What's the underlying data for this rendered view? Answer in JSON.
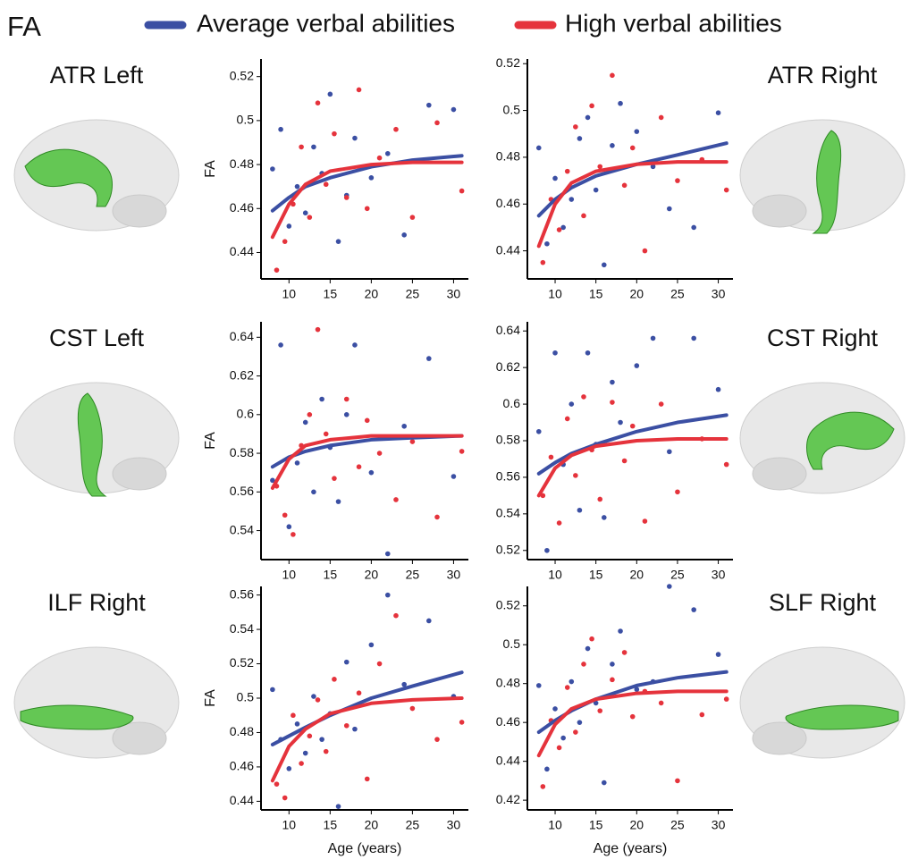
{
  "title": "FA",
  "chart_data": [
    {
      "type": "scatter",
      "title": "ATR Left",
      "ylabel": "FA",
      "xlim": [
        6.6,
        31.8
      ],
      "xticks": [
        10,
        15,
        20,
        25,
        30
      ],
      "ylim": [
        0.428,
        0.528
      ],
      "yticks": [
        0.44,
        0.46,
        0.48,
        0.5,
        0.52
      ],
      "series": [
        {
          "name": "Average verbal abilities",
          "color": "#3b4fa3",
          "x": [
            8,
            9,
            10,
            11,
            12,
            13,
            14,
            15,
            16,
            17,
            18,
            20,
            22,
            24,
            27,
            30
          ],
          "values": [
            0.478,
            0.496,
            0.452,
            0.47,
            0.458,
            0.488,
            0.476,
            0.512,
            0.445,
            0.466,
            0.492,
            0.474,
            0.485,
            0.448,
            0.507,
            0.505
          ],
          "fit_x": [
            8,
            10,
            12,
            15,
            20,
            25,
            31
          ],
          "fit_values": [
            0.459,
            0.465,
            0.47,
            0.474,
            0.479,
            0.482,
            0.484
          ]
        },
        {
          "name": "High verbal abilities",
          "color": "#e5333c",
          "x": [
            8.5,
            9.5,
            10.5,
            11.5,
            12.5,
            13.5,
            14.5,
            15.5,
            17,
            18.5,
            19.5,
            21,
            23,
            25,
            28,
            31
          ],
          "values": [
            0.432,
            0.445,
            0.462,
            0.488,
            0.456,
            0.508,
            0.471,
            0.494,
            0.465,
            0.514,
            0.46,
            0.483,
            0.496,
            0.456,
            0.499,
            0.468
          ],
          "fit_x": [
            8,
            10,
            12,
            15,
            20,
            25,
            31
          ],
          "fit_values": [
            0.447,
            0.462,
            0.471,
            0.477,
            0.48,
            0.481,
            0.481
          ]
        }
      ]
    },
    {
      "type": "scatter",
      "title": "ATR Right",
      "xlim": [
        6.6,
        31.8
      ],
      "xticks": [
        10,
        15,
        20,
        25,
        30
      ],
      "ylim": [
        0.428,
        0.522
      ],
      "yticks": [
        0.44,
        0.46,
        0.48,
        0.5,
        0.52
      ],
      "series": [
        {
          "name": "Average verbal abilities",
          "color": "#3b4fa3",
          "x": [
            8,
            9,
            10,
            11,
            12,
            13,
            14,
            15,
            16,
            17,
            18,
            20,
            22,
            24,
            27,
            30
          ],
          "values": [
            0.484,
            0.443,
            0.471,
            0.45,
            0.462,
            0.488,
            0.497,
            0.466,
            0.434,
            0.485,
            0.503,
            0.491,
            0.476,
            0.458,
            0.45,
            0.499
          ],
          "fit_x": [
            8,
            10,
            12,
            15,
            20,
            25,
            31
          ],
          "fit_values": [
            0.455,
            0.462,
            0.467,
            0.472,
            0.477,
            0.481,
            0.486
          ]
        },
        {
          "name": "High verbal abilities",
          "color": "#e5333c",
          "x": [
            8.5,
            9.5,
            10.5,
            11.5,
            12.5,
            13.5,
            14.5,
            15.5,
            17,
            18.5,
            19.5,
            21,
            23,
            25,
            28,
            31
          ],
          "values": [
            0.435,
            0.462,
            0.449,
            0.474,
            0.493,
            0.455,
            0.502,
            0.476,
            0.515,
            0.468,
            0.484,
            0.44,
            0.497,
            0.47,
            0.479,
            0.466
          ],
          "fit_x": [
            8,
            10,
            12,
            15,
            20,
            25,
            31
          ],
          "fit_values": [
            0.442,
            0.46,
            0.469,
            0.474,
            0.477,
            0.478,
            0.478
          ]
        }
      ]
    },
    {
      "type": "scatter",
      "title": "CST Left",
      "ylabel": "FA",
      "xlim": [
        6.6,
        31.8
      ],
      "xticks": [
        10,
        15,
        20,
        25,
        30
      ],
      "ylim": [
        0.525,
        0.648
      ],
      "yticks": [
        0.54,
        0.56,
        0.58,
        0.6,
        0.62,
        0.64
      ],
      "series": [
        {
          "name": "Average verbal abilities",
          "color": "#3b4fa3",
          "x": [
            8,
            9,
            10,
            11,
            12,
            13,
            14,
            15,
            16,
            17,
            18,
            20,
            22,
            24,
            27,
            30
          ],
          "values": [
            0.566,
            0.636,
            0.542,
            0.575,
            0.596,
            0.56,
            0.608,
            0.583,
            0.555,
            0.6,
            0.636,
            0.57,
            0.528,
            0.594,
            0.629,
            0.568
          ],
          "fit_x": [
            8,
            10,
            12,
            15,
            20,
            25,
            31
          ],
          "fit_values": [
            0.573,
            0.578,
            0.581,
            0.584,
            0.587,
            0.588,
            0.589
          ]
        },
        {
          "name": "High verbal abilities",
          "color": "#e5333c",
          "x": [
            8.5,
            9.5,
            10.5,
            11.5,
            12.5,
            13.5,
            14.5,
            15.5,
            17,
            18.5,
            19.5,
            21,
            23,
            25,
            28,
            31
          ],
          "values": [
            0.563,
            0.548,
            0.538,
            0.584,
            0.6,
            0.644,
            0.59,
            0.567,
            0.608,
            0.573,
            0.597,
            0.58,
            0.556,
            0.586,
            0.547,
            0.581
          ],
          "fit_x": [
            8,
            10,
            12,
            15,
            20,
            25,
            31
          ],
          "fit_values": [
            0.562,
            0.577,
            0.584,
            0.587,
            0.589,
            0.589,
            0.589
          ]
        }
      ]
    },
    {
      "type": "scatter",
      "title": "CST Right",
      "xlim": [
        6.6,
        31.8
      ],
      "xticks": [
        10,
        15,
        20,
        25,
        30
      ],
      "ylim": [
        0.515,
        0.645
      ],
      "yticks": [
        0.52,
        0.54,
        0.56,
        0.58,
        0.6,
        0.62,
        0.64
      ],
      "series": [
        {
          "name": "Average verbal abilities",
          "color": "#3b4fa3",
          "x": [
            8,
            9,
            10,
            11,
            12,
            13,
            14,
            15,
            16,
            17,
            18,
            20,
            22,
            24,
            27,
            30
          ],
          "values": [
            0.585,
            0.52,
            0.628,
            0.567,
            0.6,
            0.542,
            0.628,
            0.578,
            0.538,
            0.612,
            0.59,
            0.621,
            0.636,
            0.574,
            0.636,
            0.608
          ],
          "fit_x": [
            8,
            10,
            12,
            15,
            20,
            25,
            31
          ],
          "fit_values": [
            0.562,
            0.568,
            0.573,
            0.578,
            0.585,
            0.59,
            0.594
          ]
        },
        {
          "name": "High verbal abilities",
          "color": "#e5333c",
          "x": [
            8.5,
            9.5,
            10.5,
            11.5,
            12.5,
            13.5,
            14.5,
            15.5,
            17,
            18.5,
            19.5,
            21,
            23,
            25,
            28,
            31
          ],
          "values": [
            0.55,
            0.571,
            0.535,
            0.592,
            0.561,
            0.604,
            0.575,
            0.548,
            0.601,
            0.569,
            0.588,
            0.536,
            0.6,
            0.552,
            0.581,
            0.567
          ],
          "fit_x": [
            8,
            10,
            12,
            15,
            20,
            25,
            31
          ],
          "fit_values": [
            0.55,
            0.565,
            0.572,
            0.577,
            0.58,
            0.581,
            0.581
          ]
        }
      ]
    },
    {
      "type": "scatter",
      "title": "ILF Right",
      "ylabel": "FA",
      "xlabel": "Age (years)",
      "xlim": [
        6.6,
        31.8
      ],
      "xticks": [
        10,
        15,
        20,
        25,
        30
      ],
      "ylim": [
        0.435,
        0.565
      ],
      "yticks": [
        0.44,
        0.46,
        0.48,
        0.5,
        0.52,
        0.54,
        0.56
      ],
      "series": [
        {
          "name": "Average verbal abilities",
          "color": "#3b4fa3",
          "x": [
            8,
            9,
            10,
            11,
            12,
            13,
            14,
            15,
            16,
            17,
            18,
            20,
            22,
            24,
            27,
            30
          ],
          "values": [
            0.505,
            0.476,
            0.459,
            0.485,
            0.468,
            0.501,
            0.476,
            0.491,
            0.437,
            0.521,
            0.482,
            0.531,
            0.56,
            0.508,
            0.545,
            0.501
          ],
          "fit_x": [
            8,
            10,
            12,
            15,
            20,
            25,
            31
          ],
          "fit_values": [
            0.473,
            0.478,
            0.483,
            0.49,
            0.5,
            0.507,
            0.515
          ]
        },
        {
          "name": "High verbal abilities",
          "color": "#e5333c",
          "x": [
            8.5,
            9.5,
            10.5,
            11.5,
            12.5,
            13.5,
            14.5,
            15.5,
            17,
            18.5,
            19.5,
            21,
            23,
            25,
            28,
            31
          ],
          "values": [
            0.45,
            0.442,
            0.49,
            0.462,
            0.478,
            0.499,
            0.469,
            0.511,
            0.484,
            0.503,
            0.453,
            0.52,
            0.548,
            0.494,
            0.476,
            0.486
          ],
          "fit_x": [
            8,
            10,
            12,
            15,
            20,
            25,
            31
          ],
          "fit_values": [
            0.452,
            0.472,
            0.482,
            0.491,
            0.497,
            0.499,
            0.5
          ]
        }
      ]
    },
    {
      "type": "scatter",
      "title": "SLF Right",
      "xlabel": "Age (years)",
      "xlim": [
        6.6,
        31.8
      ],
      "xticks": [
        10,
        15,
        20,
        25,
        30
      ],
      "ylim": [
        0.415,
        0.53
      ],
      "yticks": [
        0.42,
        0.44,
        0.46,
        0.48,
        0.5,
        0.52
      ],
      "series": [
        {
          "name": "Average verbal abilities",
          "color": "#3b4fa3",
          "x": [
            8,
            9,
            10,
            11,
            12,
            13,
            14,
            15,
            16,
            17,
            18,
            20,
            22,
            24,
            27,
            30
          ],
          "values": [
            0.479,
            0.436,
            0.467,
            0.452,
            0.481,
            0.46,
            0.498,
            0.47,
            0.429,
            0.49,
            0.507,
            0.477,
            0.481,
            0.53,
            0.518,
            0.495
          ],
          "fit_x": [
            8,
            10,
            12,
            15,
            20,
            25,
            31
          ],
          "fit_values": [
            0.455,
            0.461,
            0.466,
            0.472,
            0.479,
            0.483,
            0.486
          ]
        },
        {
          "name": "High verbal abilities",
          "color": "#e5333c",
          "x": [
            8.5,
            9.5,
            10.5,
            11.5,
            12.5,
            13.5,
            14.5,
            15.5,
            17,
            18.5,
            19.5,
            21,
            23,
            25,
            28,
            31
          ],
          "values": [
            0.427,
            0.461,
            0.447,
            0.478,
            0.455,
            0.49,
            0.503,
            0.466,
            0.482,
            0.496,
            0.463,
            0.476,
            0.47,
            0.43,
            0.464,
            0.472
          ],
          "fit_x": [
            8,
            10,
            12,
            15,
            20,
            25,
            31
          ],
          "fit_values": [
            0.443,
            0.459,
            0.467,
            0.472,
            0.475,
            0.476,
            0.476
          ]
        }
      ]
    }
  ]
}
